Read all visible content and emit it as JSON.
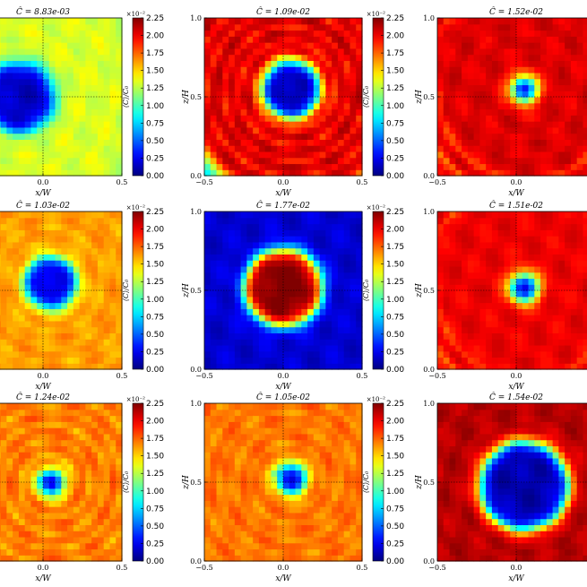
{
  "figure": {
    "colormap": "jet",
    "colorbar_ticks": [
      "0.00",
      "0.25",
      "0.50",
      "0.75",
      "1.00",
      "1.25",
      "1.50",
      "1.75",
      "2.00",
      "2.25"
    ],
    "colorbar_multiplier": "×10⁻²",
    "colorbar_label": "⟨C⟩/C₀",
    "x_label": "x/W",
    "z_label": "z/H",
    "x_ticks": [
      "−0.5",
      "0.0",
      "0.5"
    ],
    "z_ticks": [
      "0.0",
      "0.5",
      "1.0"
    ]
  },
  "chart_data": [
    {
      "type": "heatmap",
      "title": "Ĉ = 8.83e-03",
      "xlabel": "x/W",
      "ylabel": "z/H",
      "xlim": [
        -0.5,
        0.5
      ],
      "ylim": [
        0,
        1
      ],
      "clim": [
        0,
        0.0225
      ],
      "pattern": {
        "bg": 0.0105,
        "core": {
          "x": -0.15,
          "z": 0.5,
          "r": 0.22,
          "v": 0.0015
        },
        "arms": [
          {
            "r0": 0.4,
            "pitch": 0.1,
            "width": 0.07,
            "v": 0.0135,
            "phase": 0
          }
        ]
      }
    },
    {
      "type": "heatmap",
      "title": "Ĉ = 1.09e-02",
      "xlabel": "x/W",
      "ylabel": "z/H",
      "xlim": [
        -0.5,
        0.5
      ],
      "ylim": [
        0,
        1
      ],
      "clim": [
        0,
        0.0225
      ],
      "pattern": {
        "bg": 0.0075,
        "core": {
          "x": 0.05,
          "z": 0.55,
          "r": 0.18,
          "v": 0.001
        },
        "arms": [
          {
            "r0": 0.32,
            "pitch": 0.1,
            "width": 0.08,
            "v": 0.021,
            "phase": 0.5
          }
        ]
      }
    },
    {
      "type": "heatmap",
      "title": "Ĉ = 1.52e-02",
      "xlabel": "x/W",
      "ylabel": "z/H",
      "xlim": [
        -0.5,
        0.5
      ],
      "ylim": [
        0,
        1
      ],
      "clim": [
        0,
        0.0225
      ],
      "pattern": {
        "bg": 0.011,
        "core": {
          "x": 0.05,
          "z": 0.55,
          "r": 0.07,
          "v": 0.001
        },
        "arms": [
          {
            "r0": 0.15,
            "pitch": 0.12,
            "width": 0.06,
            "v": 0.0215,
            "phase": 0
          },
          {
            "r0": 0.36,
            "pitch": 0.12,
            "width": 0.06,
            "v": 0.0205,
            "phase": 3.1
          }
        ]
      }
    },
    {
      "type": "heatmap",
      "title": "Ĉ = 1.03e-02",
      "xlabel": "x/W",
      "ylabel": "z/H",
      "xlim": [
        -0.5,
        0.5
      ],
      "ylim": [
        0,
        1
      ],
      "clim": [
        0,
        0.0225
      ],
      "pattern": {
        "bg": 0.0125,
        "core": {
          "x": 0.05,
          "z": 0.55,
          "r": 0.16,
          "v": 0.002
        },
        "arms": [
          {
            "r0": 0.42,
            "pitch": 0.1,
            "width": 0.07,
            "v": 0.0165,
            "phase": 3.8
          }
        ]
      }
    },
    {
      "type": "heatmap",
      "title": "Ĉ = 1.77e-02",
      "xlabel": "x/W",
      "ylabel": "z/H",
      "xlim": [
        -0.5,
        0.5
      ],
      "ylim": [
        0,
        1
      ],
      "clim": [
        0,
        0.0225
      ],
      "pattern": {
        "bg": 0.0018,
        "core": {
          "x": 0.0,
          "z": 0.52,
          "r": 0.24,
          "v": 0.0225
        },
        "arms": []
      }
    },
    {
      "type": "heatmap",
      "title": "Ĉ = 1.51e-02",
      "xlabel": "x/W",
      "ylabel": "z/H",
      "xlim": [
        -0.5,
        0.5
      ],
      "ylim": [
        0,
        1
      ],
      "clim": [
        0,
        0.0225
      ],
      "pattern": {
        "bg": 0.01,
        "core": {
          "x": 0.05,
          "z": 0.52,
          "r": 0.08,
          "v": 0.001
        },
        "arms": [
          {
            "r0": 0.16,
            "pitch": 0.11,
            "width": 0.07,
            "v": 0.021,
            "phase": 0.3
          },
          {
            "r0": 0.38,
            "pitch": 0.11,
            "width": 0.07,
            "v": 0.02,
            "phase": 3.4
          }
        ]
      }
    },
    {
      "type": "heatmap",
      "title": "Ĉ = 1.24e-02",
      "xlabel": "x/W",
      "ylabel": "z/H",
      "xlim": [
        -0.5,
        0.5
      ],
      "ylim": [
        0,
        1
      ],
      "clim": [
        0,
        0.0225
      ],
      "pattern": {
        "bg": 0.0115,
        "core": {
          "x": 0.05,
          "z": 0.5,
          "r": 0.07,
          "v": 0.001
        },
        "arms": [
          {
            "r0": 0.38,
            "pitch": 0.1,
            "width": 0.06,
            "v": 0.0175,
            "phase": 1.0
          }
        ]
      }
    },
    {
      "type": "heatmap",
      "title": "Ĉ = 1.05e-02",
      "xlabel": "x/W",
      "ylabel": "z/H",
      "xlim": [
        -0.5,
        0.5
      ],
      "ylim": [
        0,
        1
      ],
      "clim": [
        0,
        0.0225
      ],
      "pattern": {
        "bg": 0.0105,
        "core": {
          "x": 0.05,
          "z": 0.52,
          "r": 0.08,
          "v": 0.001
        },
        "arms": [
          {
            "r0": 0.38,
            "pitch": 0.1,
            "width": 0.08,
            "v": 0.0175,
            "phase": 4.8
          }
        ]
      }
    },
    {
      "type": "heatmap",
      "title": "Ĉ = 1.54e-02",
      "xlabel": "x/W",
      "ylabel": "z/H",
      "xlim": [
        -0.5,
        0.5
      ],
      "ylim": [
        0,
        1
      ],
      "clim": [
        0,
        0.0225
      ],
      "pattern": {
        "bg": 0.019,
        "core": {
          "x": 0.05,
          "z": 0.48,
          "r": 0.28,
          "v": 0.001
        },
        "arms": [
          {
            "r0": 0.44,
            "pitch": 0.1,
            "width": 0.07,
            "v": 0.0215,
            "phase": 0
          }
        ]
      }
    }
  ]
}
